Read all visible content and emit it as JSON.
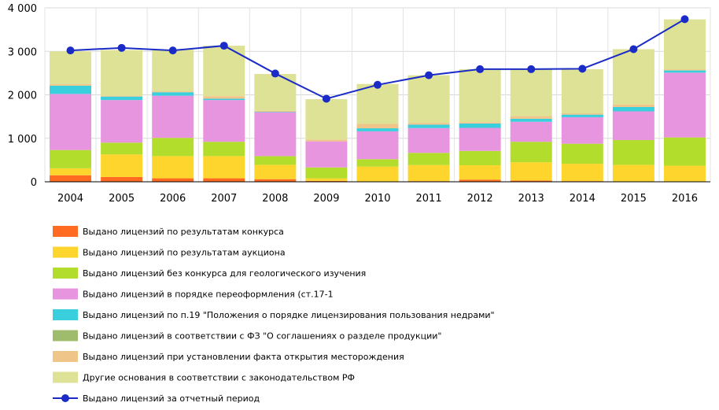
{
  "chart_data": {
    "type": "bar",
    "stacked": true,
    "categories": [
      "2004",
      "2005",
      "2006",
      "2007",
      "2008",
      "2009",
      "2010",
      "2011",
      "2012",
      "2013",
      "2014",
      "2015",
      "2016"
    ],
    "ylim": [
      0,
      4000
    ],
    "yticks": [
      0,
      1000,
      2000,
      3000,
      4000
    ],
    "ytick_labels": [
      "0",
      "1 000",
      "2 000",
      "3 000",
      "4 000"
    ],
    "grid": true,
    "legend_position": "bottom",
    "series": [
      {
        "name": "Выдано лицензий по результатам конкурса",
        "color": "#ff6c21",
        "values": [
          150,
          110,
          80,
          80,
          60,
          20,
          10,
          15,
          50,
          30,
          15,
          10,
          10
        ]
      },
      {
        "name": "Выдано лицензий по результатам аукциона",
        "color": "#fed52d",
        "values": [
          160,
          520,
          510,
          510,
          330,
          60,
          340,
          370,
          330,
          420,
          400,
          380,
          360
        ]
      },
      {
        "name": "Выдано лицензий без конкурса для геологического изучения",
        "color": "#b2dd2c",
        "values": [
          420,
          270,
          420,
          330,
          200,
          250,
          170,
          280,
          330,
          470,
          460,
          570,
          650
        ]
      },
      {
        "name": "Выдано лицензий в порядке переоформления (ст.17-1",
        "color": "#e895e0",
        "values": [
          1290,
          980,
          970,
          960,
          1010,
          600,
          640,
          570,
          530,
          460,
          610,
          660,
          1490
        ]
      },
      {
        "name": "Выдано лицензий по п.19 \"Положения о порядке лицензирования пользования недрами\"",
        "color": "#3acfdc",
        "values": [
          190,
          80,
          80,
          30,
          10,
          0,
          70,
          80,
          100,
          70,
          60,
          100,
          50
        ]
      },
      {
        "name": "Выдано лицензий в соответствии с ФЗ \"О соглашениях о разделе продукции\"",
        "color": "#9fbc6c",
        "values": [
          0,
          0,
          0,
          0,
          0,
          0,
          0,
          0,
          0,
          0,
          0,
          0,
          0
        ]
      },
      {
        "name": "Выдано лицензий при установлении факта открытия месторождения",
        "color": "#f0c58a",
        "values": [
          40,
          20,
          20,
          60,
          20,
          40,
          100,
          40,
          30,
          60,
          30,
          60,
          20
        ]
      },
      {
        "name": "Другие основания в соответствии с законодательством РФ",
        "color": "#dde296",
        "values": [
          750,
          1050,
          960,
          1160,
          850,
          930,
          920,
          1095,
          1220,
          1085,
          1015,
          1270,
          1155
        ]
      }
    ],
    "line": {
      "name": "Выдано лицензий за отчетный период",
      "color": "#1a2bc7",
      "values": [
        3020,
        3080,
        3020,
        3130,
        2490,
        1910,
        2230,
        2450,
        2590,
        2590,
        2600,
        3050,
        3740
      ]
    }
  }
}
